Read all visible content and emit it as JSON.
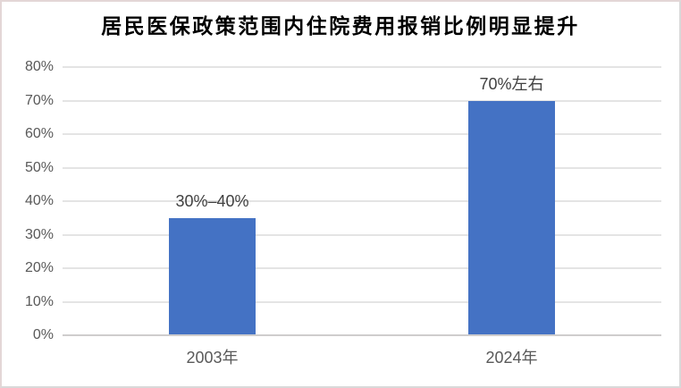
{
  "frame": {
    "background": "#ffffff",
    "border_color_top_left": "#e3d6d6",
    "border_color_bottom_right": "#d9d9d9"
  },
  "chart_data": {
    "type": "bar",
    "title": "居民医保政策范围内住院费用报销比例明显提升",
    "categories": [
      "2003年",
      "2024年"
    ],
    "values": [
      35,
      70
    ],
    "data_labels": [
      "30%–40%",
      "70%左右"
    ],
    "xlabel": "",
    "ylabel": "",
    "ylim": [
      0,
      80
    ],
    "ytick_step": 10,
    "ytick_labels": [
      "0%",
      "10%",
      "20%",
      "30%",
      "40%",
      "50%",
      "60%",
      "70%",
      "80%"
    ],
    "grid": true,
    "legend": false,
    "bar_color": "#4472C4",
    "gridline_color": "#e4e4e4",
    "axis_line_color": "#cfcdcd",
    "tick_label_color": "#595959",
    "data_label_color": "#404040",
    "category_label_color": "#595959",
    "title_color": "#000000"
  }
}
